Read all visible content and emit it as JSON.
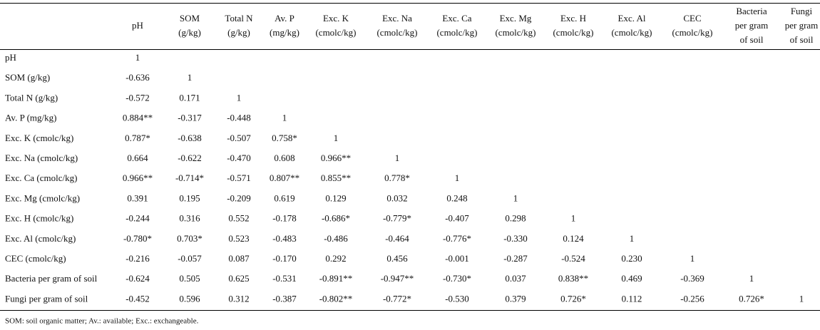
{
  "header": {
    "columns": [
      [
        "pH"
      ],
      [
        "SOM",
        "(g/kg)"
      ],
      [
        "Total N",
        "(g/kg)"
      ],
      [
        "Av. P",
        "(mg/kg)"
      ],
      [
        "Exc. K",
        "(cmolc/kg)"
      ],
      [
        "Exc. Na",
        "(cmolc/kg)"
      ],
      [
        "Exc. Ca",
        "(cmolc/kg)"
      ],
      [
        "Exc. Mg",
        "(cmolc/kg)"
      ],
      [
        "Exc. H",
        "(cmolc/kg)"
      ],
      [
        "Exc. Al",
        "(cmolc/kg)"
      ],
      [
        "CEC",
        "(cmolc/kg)"
      ],
      [
        "Bacteria",
        "per gram",
        "of soil"
      ],
      [
        "Fungi",
        "per gram",
        "of soil"
      ]
    ]
  },
  "table": {
    "rows": [
      {
        "label": "pH",
        "values": [
          "1"
        ]
      },
      {
        "label": "SOM (g/kg)",
        "values": [
          "-0.636",
          "1"
        ]
      },
      {
        "label": "Total N (g/kg)",
        "values": [
          "-0.572",
          "0.171",
          "1"
        ]
      },
      {
        "label": "Av. P (mg/kg)",
        "values": [
          "0.884**",
          "-0.317",
          "-0.448",
          "1"
        ]
      },
      {
        "label": "Exc. K (cmolc/kg)",
        "values": [
          "0.787*",
          "-0.638",
          "-0.507",
          "0.758*",
          "1"
        ]
      },
      {
        "label": "Exc. Na (cmolc/kg)",
        "values": [
          "0.664",
          "-0.622",
          "-0.470",
          "0.608",
          "0.966**",
          "1"
        ]
      },
      {
        "label": "Exc. Ca (cmolc/kg)",
        "values": [
          "0.966**",
          "-0.714*",
          "-0.571",
          "0.807**",
          "0.855**",
          "0.778*",
          "1"
        ]
      },
      {
        "label": "Exc. Mg (cmolc/kg)",
        "values": [
          "0.391",
          "0.195",
          "-0.209",
          "0.619",
          "0.129",
          "0.032",
          "0.248",
          "1"
        ]
      },
      {
        "label": "Exc. H (cmolc/kg)",
        "values": [
          "-0.244",
          "0.316",
          "0.552",
          "-0.178",
          "-0.686*",
          "-0.779*",
          "-0.407",
          "0.298",
          "1"
        ]
      },
      {
        "label": "Exc. Al (cmolc/kg)",
        "values": [
          "-0.780*",
          "0.703*",
          "0.523",
          "-0.483",
          "-0.486",
          "-0.464",
          "-0.776*",
          "-0.330",
          "0.124",
          "1"
        ]
      },
      {
        "label": "CEC (cmolc/kg)",
        "values": [
          "-0.216",
          "-0.057",
          "0.087",
          "-0.170",
          "0.292",
          "0.456",
          "-0.001",
          "-0.287",
          "-0.524",
          "0.230",
          "1"
        ]
      },
      {
        "label": "Bacteria per gram of soil",
        "values": [
          "-0.624",
          "0.505",
          "0.625",
          "-0.531",
          "-0.891**",
          "-0.947**",
          "-0.730*",
          "0.037",
          "0.838**",
          "0.469",
          "-0.369",
          "1"
        ]
      },
      {
        "label": "Fungi per gram of soil",
        "values": [
          "-0.452",
          "0.596",
          "0.312",
          "-0.387",
          "-0.802**",
          "-0.772*",
          "-0.530",
          "0.379",
          "0.726*",
          "0.112",
          "-0.256",
          "0.726*",
          "1"
        ]
      }
    ]
  },
  "footnote": "SOM: soil organic matter; Av.: available; Exc.: exchangeable."
}
